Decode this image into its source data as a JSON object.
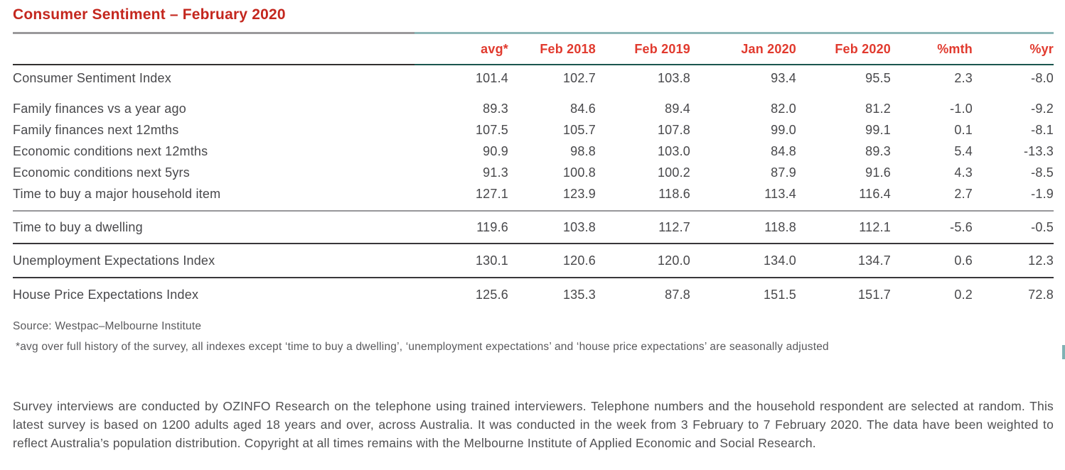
{
  "title": "Consumer Sentiment – February 2020",
  "chart_data": {
    "type": "table",
    "title": "Consumer Sentiment – February 2020",
    "columns": [
      "avg*",
      "Feb 2018",
      "Feb 2019",
      "Jan 2020",
      "Feb 2020",
      "%mth",
      "%yr"
    ],
    "rows": [
      {
        "label": "Consumer Sentiment Index",
        "values": [
          "101.4",
          "102.7",
          "103.8",
          "93.4",
          "95.5",
          "2.3",
          "-8.0"
        ]
      },
      {
        "label": "Family finances vs a year ago",
        "values": [
          "89.3",
          "84.6",
          "89.4",
          "82.0",
          "81.2",
          "-1.0",
          "-9.2"
        ]
      },
      {
        "label": "Family finances next 12mths",
        "values": [
          "107.5",
          "105.7",
          "107.8",
          "99.0",
          "99.1",
          "0.1",
          "-8.1"
        ]
      },
      {
        "label": "Economic conditions next 12mths",
        "values": [
          "90.9",
          "98.8",
          "103.0",
          "84.8",
          "89.3",
          "5.4",
          "-13.3"
        ]
      },
      {
        "label": "Economic conditions next 5yrs",
        "values": [
          "91.3",
          "100.8",
          "100.2",
          "87.9",
          "91.6",
          "4.3",
          "-8.5"
        ]
      },
      {
        "label": "Time to buy a major household item",
        "values": [
          "127.1",
          "123.9",
          "118.6",
          "113.4",
          "116.4",
          "2.7",
          "-1.9"
        ]
      },
      {
        "label": "Time to buy a dwelling",
        "values": [
          "119.6",
          "103.8",
          "112.7",
          "118.8",
          "112.1",
          "-5.6",
          "-0.5"
        ]
      },
      {
        "label": "Unemployment Expectations Index",
        "values": [
          "130.1",
          "120.6",
          "120.0",
          "134.0",
          "134.7",
          "0.6",
          "12.3"
        ]
      },
      {
        "label": "House Price Expectations Index",
        "values": [
          "125.6",
          "135.3",
          "87.8",
          "151.5",
          "151.7",
          "0.2",
          "72.8"
        ]
      }
    ]
  },
  "notes": {
    "source": "Source: Westpac–Melbourne Institute",
    "footnote": "*avg over full history of the survey, all indexes except ‘time to buy a dwelling’, ‘unemployment expectations’ and ‘house price expectations’ are seasonally adjusted"
  },
  "paragraph": "Survey interviews are conducted by OZINFO Research on the telephone using trained interviewers. Telephone numbers and the household respondent are selected at random. This latest survey is based on 1200 adults aged 18 years and over, across Australia. It was conducted in the week from 3 February to 7 February 2020. The data have been weighted to reflect Australia’s population distribution. Copyright at all times remains with the Melbourne Institute of Applied Economic and Social Research.",
  "colors": {
    "title_red": "#C4271E",
    "header_red": "#E13A2E",
    "body_text": "#48484B",
    "note_text": "#59595C",
    "rule_gray": "#9A999B",
    "rule_teal_light": "#8DB6B7",
    "rule_dark": "#312F2E",
    "rule_teal_dark": "#1B564F",
    "rule_section_gray": "#97969A",
    "rule_row_dark": "#38373A"
  }
}
